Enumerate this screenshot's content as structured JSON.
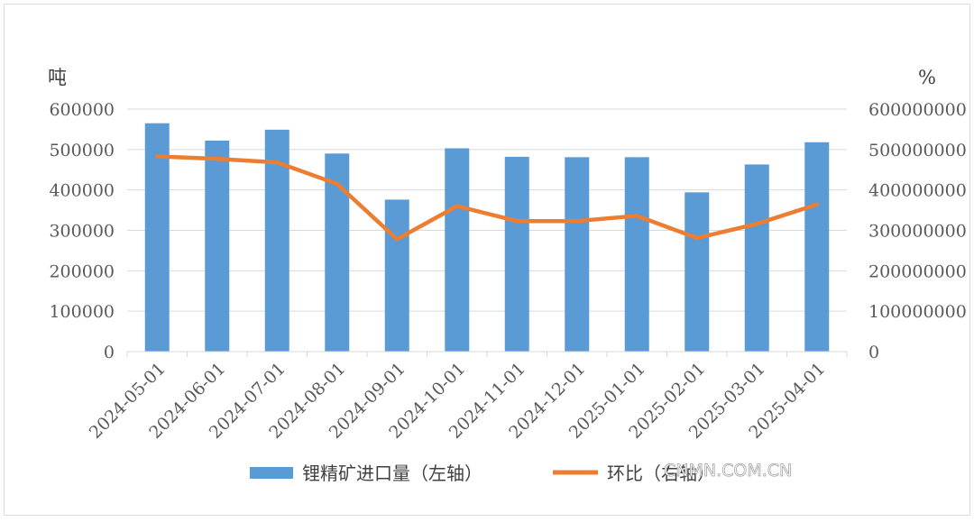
{
  "chart_data": {
    "type": "bar",
    "categories": [
      "2024-05-01",
      "2024-06-01",
      "2024-07-01",
      "2024-08-01",
      "2024-09-01",
      "2024-10-01",
      "2024-11-01",
      "2024-12-01",
      "2025-01-01",
      "2025-02-01",
      "2025-03-01",
      "2025-04-01"
    ],
    "series": [
      {
        "name": "锂精矿进口量（左轴）",
        "type": "bar",
        "axis": "left",
        "color": "#5b9bd5",
        "values": [
          565000,
          522000,
          549000,
          490000,
          376000,
          503000,
          482000,
          481000,
          481000,
          394000,
          463000,
          518000
        ]
      },
      {
        "name": "环比（右轴）",
        "type": "line",
        "axis": "right",
        "color": "#ed7d31",
        "values": [
          483000000,
          477000000,
          468000000,
          415000000,
          278000000,
          360000000,
          323000000,
          323000000,
          336000000,
          281000000,
          316000000,
          364000000
        ]
      }
    ],
    "left_axis": {
      "unit": "吨",
      "ylim": [
        0,
        600000
      ],
      "ticks": [
        "0",
        "100000",
        "200000",
        "300000",
        "400000",
        "500000",
        "600000"
      ]
    },
    "right_axis": {
      "unit": "%",
      "ylim": [
        0,
        600000000
      ],
      "ticks": [
        "0",
        "100000000",
        "200000000",
        "300000000",
        "400000000",
        "500000000",
        "600000000"
      ]
    },
    "grid": "horizontal",
    "legend_position": "bottom"
  },
  "watermark": "CNMN.COM.CN"
}
